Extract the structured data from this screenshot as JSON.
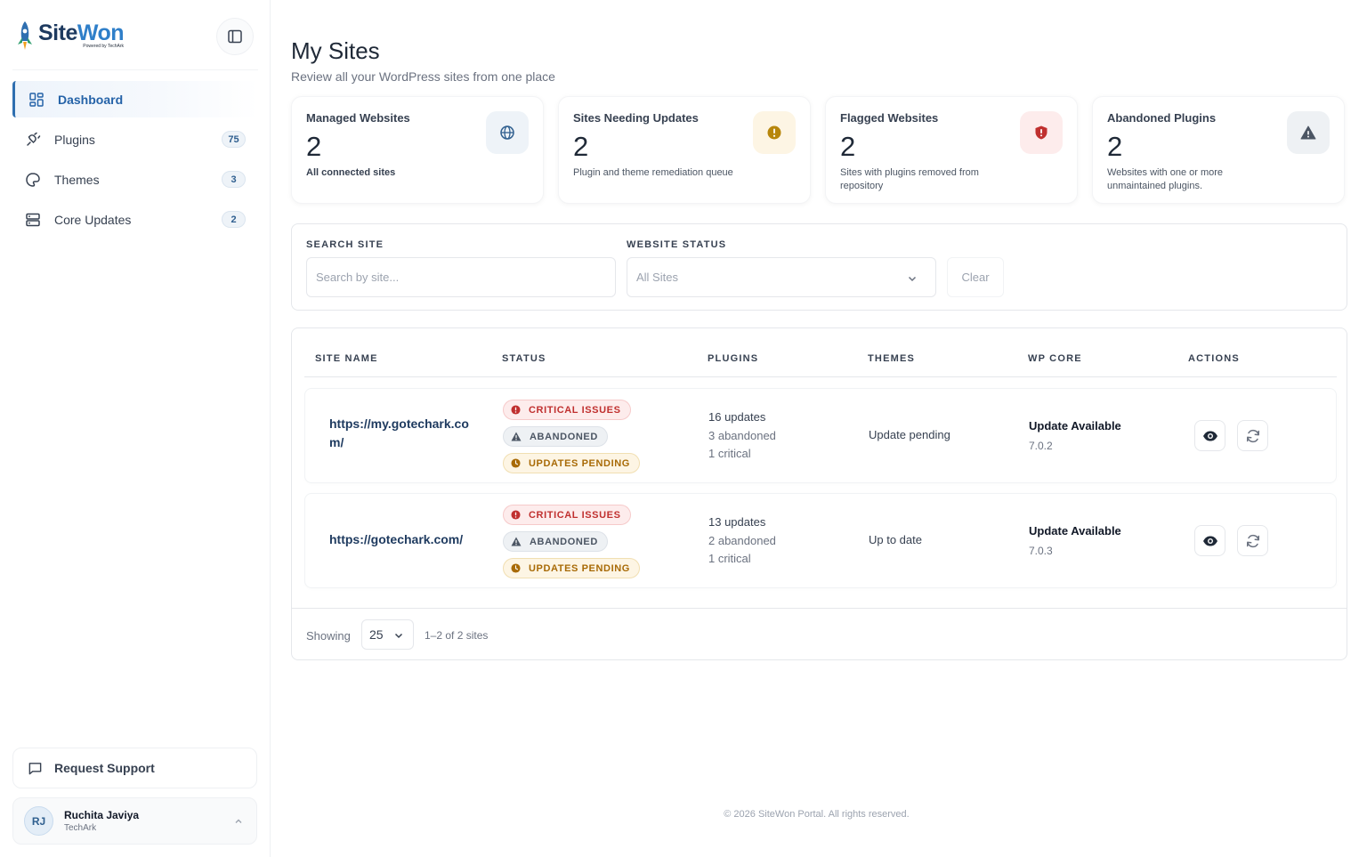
{
  "brand": {
    "name_part1": "Site",
    "name_part2": "Won",
    "tagline": "Powered by TechArk",
    "colors": {
      "primary": "#1e3a5f",
      "accent": "#2f7fc9"
    }
  },
  "sidebar": {
    "items": [
      {
        "label": "Dashboard",
        "icon": "grid-icon",
        "badge": null,
        "active": true
      },
      {
        "label": "Plugins",
        "icon": "plug-icon",
        "badge": "75",
        "active": false
      },
      {
        "label": "Themes",
        "icon": "palette-icon",
        "badge": "3",
        "active": false
      },
      {
        "label": "Core Updates",
        "icon": "server-icon",
        "badge": "2",
        "active": false
      }
    ],
    "support_label": "Request Support",
    "user": {
      "initials": "RJ",
      "name": "Ruchita Javiya",
      "org": "TechArk"
    }
  },
  "header": {
    "title": "My Sites",
    "subtitle": "Review all your WordPress sites from one place"
  },
  "stats": [
    {
      "label": "Managed Websites",
      "value": "2",
      "desc": "All connected sites",
      "icon": "globe-icon",
      "color": "#2f5f8f"
    },
    {
      "label": "Sites Needing Updates",
      "value": "2",
      "desc": "Plugin and theme remediation queue",
      "icon": "alert-circle-icon",
      "color": "#b7860b"
    },
    {
      "label": "Flagged Websites",
      "value": "2",
      "desc": "Sites with plugins removed from repository",
      "icon": "shield-alert-icon",
      "color": "#c0302f"
    },
    {
      "label": "Abandoned Plugins",
      "value": "2",
      "desc": "Websites with one or more unmaintained plugins.",
      "icon": "warning-triangle-icon",
      "color": "#4b5563"
    }
  ],
  "filters": {
    "search_label": "SEARCH SITE",
    "search_placeholder": "Search by site...",
    "status_label": "WEBSITE STATUS",
    "status_value": "All Sites",
    "clear_label": "Clear"
  },
  "table": {
    "columns": [
      "SITE NAME",
      "STATUS",
      "PLUGINS",
      "THEMES",
      "WP CORE",
      "ACTIONS"
    ],
    "rows": [
      {
        "site": "https://my.gotechark.com/",
        "badges": [
          "CRITICAL ISSUES",
          "ABANDONED",
          "UPDATES PENDING"
        ],
        "plugins_updates": "16 updates",
        "plugins_abandoned": "3 abandoned",
        "plugins_critical": "1 critical",
        "themes": "Update pending",
        "core_status": "Update Available",
        "core_version": "7.0.2"
      },
      {
        "site": "https://gotechark.com/",
        "badges": [
          "CRITICAL ISSUES",
          "ABANDONED",
          "UPDATES PENDING"
        ],
        "plugins_updates": "13 updates",
        "plugins_abandoned": "2 abandoned",
        "plugins_critical": "1 critical",
        "themes": "Up to date",
        "core_status": "Update Available",
        "core_version": "7.0.3"
      }
    ],
    "footer": {
      "showing_label": "Showing",
      "per_page": "25",
      "range": "1–2 of 2 sites"
    }
  },
  "copyright": "© 2026 SiteWon Portal. All rights reserved."
}
